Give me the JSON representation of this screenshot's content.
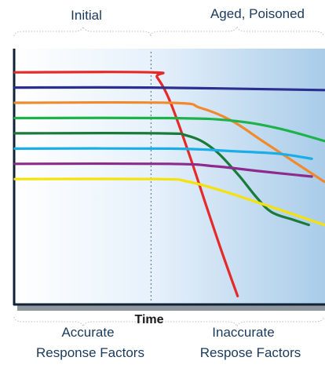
{
  "chart_data": {
    "type": "line",
    "xlabel": "Time",
    "regions": [
      {
        "name": "Initial",
        "annotation_line1": "Accurate",
        "annotation_line2": "Response Factors"
      },
      {
        "name": "Aged, Poisoned",
        "annotation_line1": "Inaccurate",
        "annotation_line2": "Respose Factors"
      }
    ],
    "divider_at_fraction": 0.44,
    "grid": false,
    "series": [
      {
        "color": "#e52a2a",
        "points": [
          [
            0.0,
            0.91
          ],
          [
            0.44,
            0.91
          ],
          [
            0.46,
            0.89
          ],
          [
            0.5,
            0.8
          ],
          [
            0.56,
            0.6
          ],
          [
            0.62,
            0.38
          ],
          [
            0.67,
            0.2
          ],
          [
            0.72,
            0.03
          ]
        ]
      },
      {
        "color": "#2b2f8f",
        "points": [
          [
            0.0,
            0.85
          ],
          [
            0.44,
            0.85
          ],
          [
            1.0,
            0.84
          ]
        ]
      },
      {
        "color": "#f08a2c",
        "points": [
          [
            0.0,
            0.79
          ],
          [
            0.5,
            0.79
          ],
          [
            0.6,
            0.77
          ],
          [
            0.7,
            0.72
          ],
          [
            0.8,
            0.64
          ],
          [
            0.9,
            0.56
          ],
          [
            1.0,
            0.48
          ]
        ]
      },
      {
        "color": "#1db24a",
        "points": [
          [
            0.0,
            0.73
          ],
          [
            0.5,
            0.73
          ],
          [
            0.7,
            0.72
          ],
          [
            0.85,
            0.69
          ],
          [
            1.0,
            0.64
          ]
        ]
      },
      {
        "color": "#1a7a3a",
        "points": [
          [
            0.0,
            0.67
          ],
          [
            0.46,
            0.67
          ],
          [
            0.56,
            0.66
          ],
          [
            0.64,
            0.61
          ],
          [
            0.72,
            0.51
          ],
          [
            0.78,
            0.42
          ],
          [
            0.83,
            0.36
          ],
          [
            0.9,
            0.33
          ],
          [
            0.95,
            0.31
          ]
        ]
      },
      {
        "color": "#19aee8",
        "points": [
          [
            0.0,
            0.61
          ],
          [
            0.5,
            0.61
          ],
          [
            0.7,
            0.6
          ],
          [
            0.85,
            0.59
          ],
          [
            0.96,
            0.57
          ]
        ]
      },
      {
        "color": "#8e2a8c",
        "points": [
          [
            0.0,
            0.55
          ],
          [
            0.5,
            0.55
          ],
          [
            0.65,
            0.54
          ],
          [
            0.8,
            0.52
          ],
          [
            0.96,
            0.5
          ]
        ]
      },
      {
        "color": "#f5e20a",
        "points": [
          [
            0.0,
            0.49
          ],
          [
            0.46,
            0.49
          ],
          [
            0.56,
            0.48
          ],
          [
            0.68,
            0.44
          ],
          [
            0.78,
            0.4
          ],
          [
            0.88,
            0.36
          ],
          [
            1.0,
            0.31
          ]
        ]
      }
    ]
  }
}
